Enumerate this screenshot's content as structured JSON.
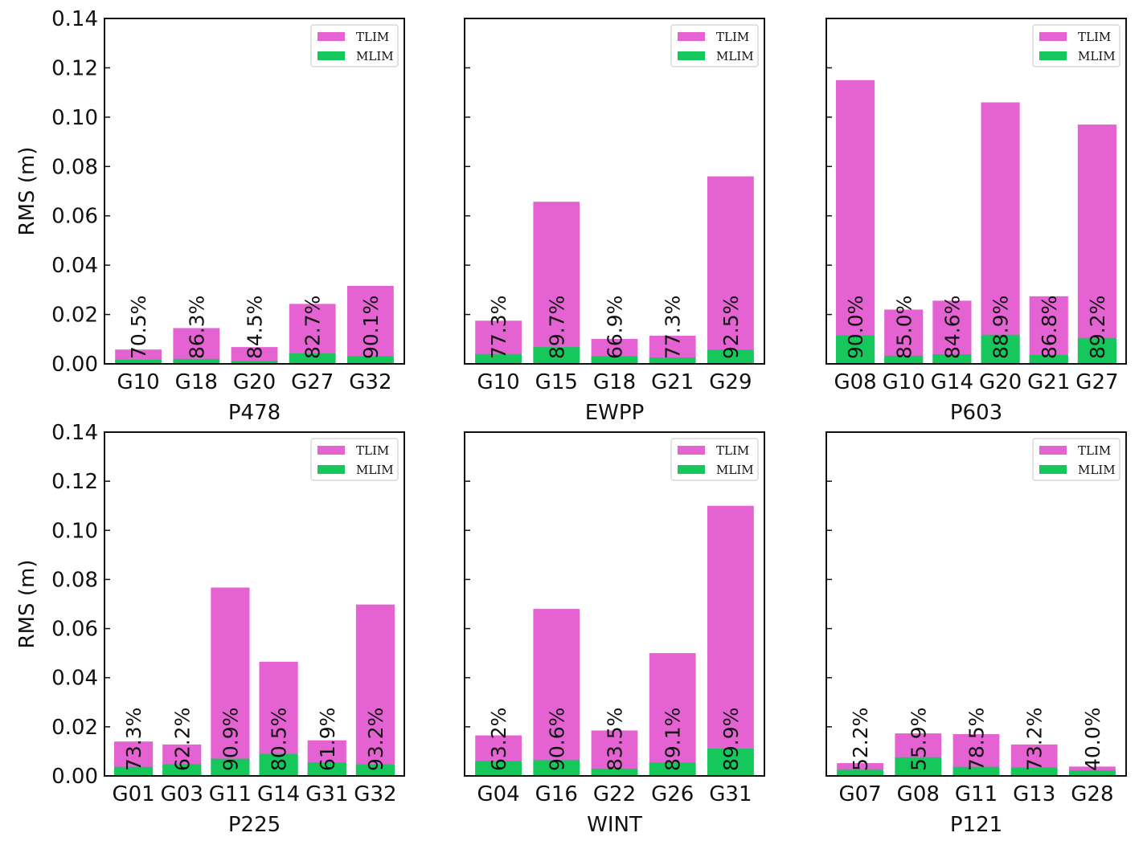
{
  "colors": {
    "tlim": "#e462d2",
    "mlim": "#16c75c",
    "axis": "#111111"
  },
  "shared_axis": {
    "ylabel": "RMS (m)",
    "ylim": [
      0,
      0.14
    ],
    "yticks": [
      "0.00",
      "0.02",
      "0.04",
      "0.06",
      "0.08",
      "0.10",
      "0.12",
      "0.14"
    ]
  },
  "legend": {
    "tlim_label": "TLIM",
    "mlim_label": "MLIM",
    "placement": "top-right"
  },
  "chart_data": [
    {
      "type": "bar",
      "title": "P478",
      "xlabel": "P478",
      "ylabel": "RMS (m)",
      "ylim": [
        0,
        0.14
      ],
      "categories": [
        "G10",
        "G18",
        "G20",
        "G27",
        "G32"
      ],
      "series": [
        {
          "name": "TLIM",
          "values": [
            0.0058,
            0.0145,
            0.0068,
            0.0243,
            0.0316
          ]
        },
        {
          "name": "MLIM",
          "values": [
            0.0017,
            0.002,
            0.0011,
            0.0042,
            0.0031
          ]
        }
      ],
      "percent_labels": [
        "70.5%",
        "86.3%",
        "84.5%",
        "82.7%",
        "90.1%"
      ]
    },
    {
      "type": "bar",
      "title": "EWPP",
      "xlabel": "EWPP",
      "ylabel": "",
      "ylim": [
        0,
        0.14
      ],
      "categories": [
        "G10",
        "G15",
        "G18",
        "G21",
        "G29"
      ],
      "series": [
        {
          "name": "TLIM",
          "values": [
            0.0175,
            0.0657,
            0.0101,
            0.0114,
            0.076
          ]
        },
        {
          "name": "MLIM",
          "values": [
            0.004,
            0.0068,
            0.0031,
            0.0026,
            0.0057
          ]
        }
      ],
      "percent_labels": [
        "77.3%",
        "89.7%",
        "66.9%",
        "77.3%",
        "92.5%"
      ]
    },
    {
      "type": "bar",
      "title": "P603",
      "xlabel": "P603",
      "ylabel": "",
      "ylim": [
        0,
        0.14
      ],
      "categories": [
        "G08",
        "G10",
        "G14",
        "G20",
        "G21",
        "G27"
      ],
      "series": [
        {
          "name": "TLIM",
          "values": [
            0.115,
            0.022,
            0.0256,
            0.106,
            0.0274,
            0.097
          ]
        },
        {
          "name": "MLIM",
          "values": [
            0.0115,
            0.0033,
            0.0039,
            0.0118,
            0.0036,
            0.0105
          ]
        }
      ],
      "percent_labels": [
        "90.0%",
        "85.0%",
        "84.6%",
        "88.9%",
        "86.8%",
        "89.2%"
      ]
    },
    {
      "type": "bar",
      "title": "P225",
      "xlabel": "P225",
      "ylabel": "RMS (m)",
      "ylim": [
        0,
        0.14
      ],
      "categories": [
        "G01",
        "G03",
        "G11",
        "G14",
        "G31",
        "G32"
      ],
      "series": [
        {
          "name": "TLIM",
          "values": [
            0.014,
            0.0128,
            0.0767,
            0.0465,
            0.0145,
            0.0698
          ]
        },
        {
          "name": "MLIM",
          "values": [
            0.0037,
            0.0048,
            0.007,
            0.009,
            0.0055,
            0.0047
          ]
        }
      ],
      "percent_labels": [
        "73.3%",
        "62.2%",
        "90.9%",
        "80.5%",
        "61.9%",
        "93.2%"
      ]
    },
    {
      "type": "bar",
      "title": "WINT",
      "xlabel": "WINT",
      "ylabel": "",
      "ylim": [
        0,
        0.14
      ],
      "categories": [
        "G04",
        "G16",
        "G22",
        "G26",
        "G31"
      ],
      "series": [
        {
          "name": "TLIM",
          "values": [
            0.0165,
            0.068,
            0.0185,
            0.05,
            0.11
          ]
        },
        {
          "name": "MLIM",
          "values": [
            0.0061,
            0.0064,
            0.003,
            0.0055,
            0.0111
          ]
        }
      ],
      "percent_labels": [
        "63.2%",
        "90.6%",
        "83.5%",
        "89.1%",
        "89.9%"
      ]
    },
    {
      "type": "bar",
      "title": "P121",
      "xlabel": "P121",
      "ylabel": "",
      "ylim": [
        0,
        0.14
      ],
      "categories": [
        "G07",
        "G08",
        "G11",
        "G13",
        "G28"
      ],
      "series": [
        {
          "name": "TLIM",
          "values": [
            0.0052,
            0.0173,
            0.017,
            0.0128,
            0.0038
          ]
        },
        {
          "name": "MLIM",
          "values": [
            0.0025,
            0.0076,
            0.0037,
            0.0034,
            0.0023
          ]
        }
      ],
      "percent_labels": [
        "52.2%",
        "55.9%",
        "78.5%",
        "73.2%",
        "40.0%"
      ]
    }
  ]
}
